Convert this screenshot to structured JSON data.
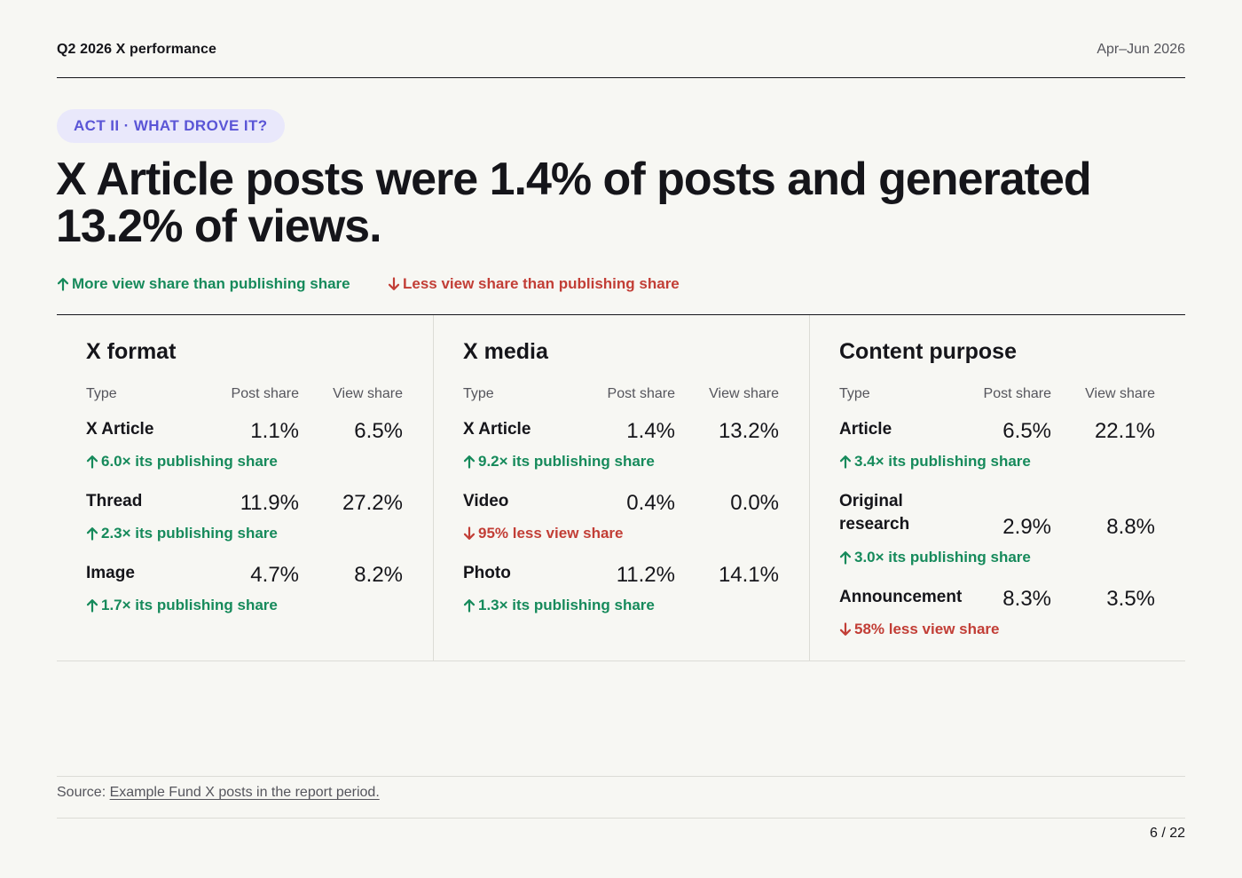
{
  "header": {
    "report_title": "Q2 2026 X performance",
    "period": "Apr–Jun 2026"
  },
  "badge": "ACT II · WHAT DROVE IT?",
  "headline": "X Article posts were 1.4% of posts and generated 13.2% of views.",
  "legend": {
    "up": "More view share than publishing share",
    "down": "Less view share than publishing share",
    "up_color": "#168a5b",
    "down_color": "#c23e36"
  },
  "columns": {
    "type": "Type",
    "post": "Post share",
    "view": "View share"
  },
  "panels": [
    {
      "title": "X format",
      "rows": [
        {
          "name": "X Article",
          "post": "1.1%",
          "view": "6.5%",
          "direction": "up",
          "note": "6.0× its publishing share"
        },
        {
          "name": "Thread",
          "post": "11.9%",
          "view": "27.2%",
          "direction": "up",
          "note": "2.3× its publishing share"
        },
        {
          "name": "Image",
          "post": "4.7%",
          "view": "8.2%",
          "direction": "up",
          "note": "1.7× its publishing share"
        }
      ]
    },
    {
      "title": "X media",
      "rows": [
        {
          "name": "X Article",
          "post": "1.4%",
          "view": "13.2%",
          "direction": "up",
          "note": "9.2× its publishing share"
        },
        {
          "name": "Video",
          "post": "0.4%",
          "view": "0.0%",
          "direction": "down",
          "note": "95% less view share"
        },
        {
          "name": "Photo",
          "post": "11.2%",
          "view": "14.1%",
          "direction": "up",
          "note": "1.3× its publishing share"
        }
      ]
    },
    {
      "title": "Content purpose",
      "rows": [
        {
          "name": "Article",
          "post": "6.5%",
          "view": "22.1%",
          "direction": "up",
          "note": "3.4× its publishing share"
        },
        {
          "name": "Original research",
          "post": "2.9%",
          "view": "8.8%",
          "direction": "up",
          "note": "3.0× its publishing share"
        },
        {
          "name": "Announcement",
          "post": "8.3%",
          "view": "3.5%",
          "direction": "down",
          "note": "58% less view share"
        }
      ]
    }
  ],
  "source": {
    "label": "Source:",
    "link": "Example Fund X posts in the report period."
  },
  "page_number": "6 / 22"
}
